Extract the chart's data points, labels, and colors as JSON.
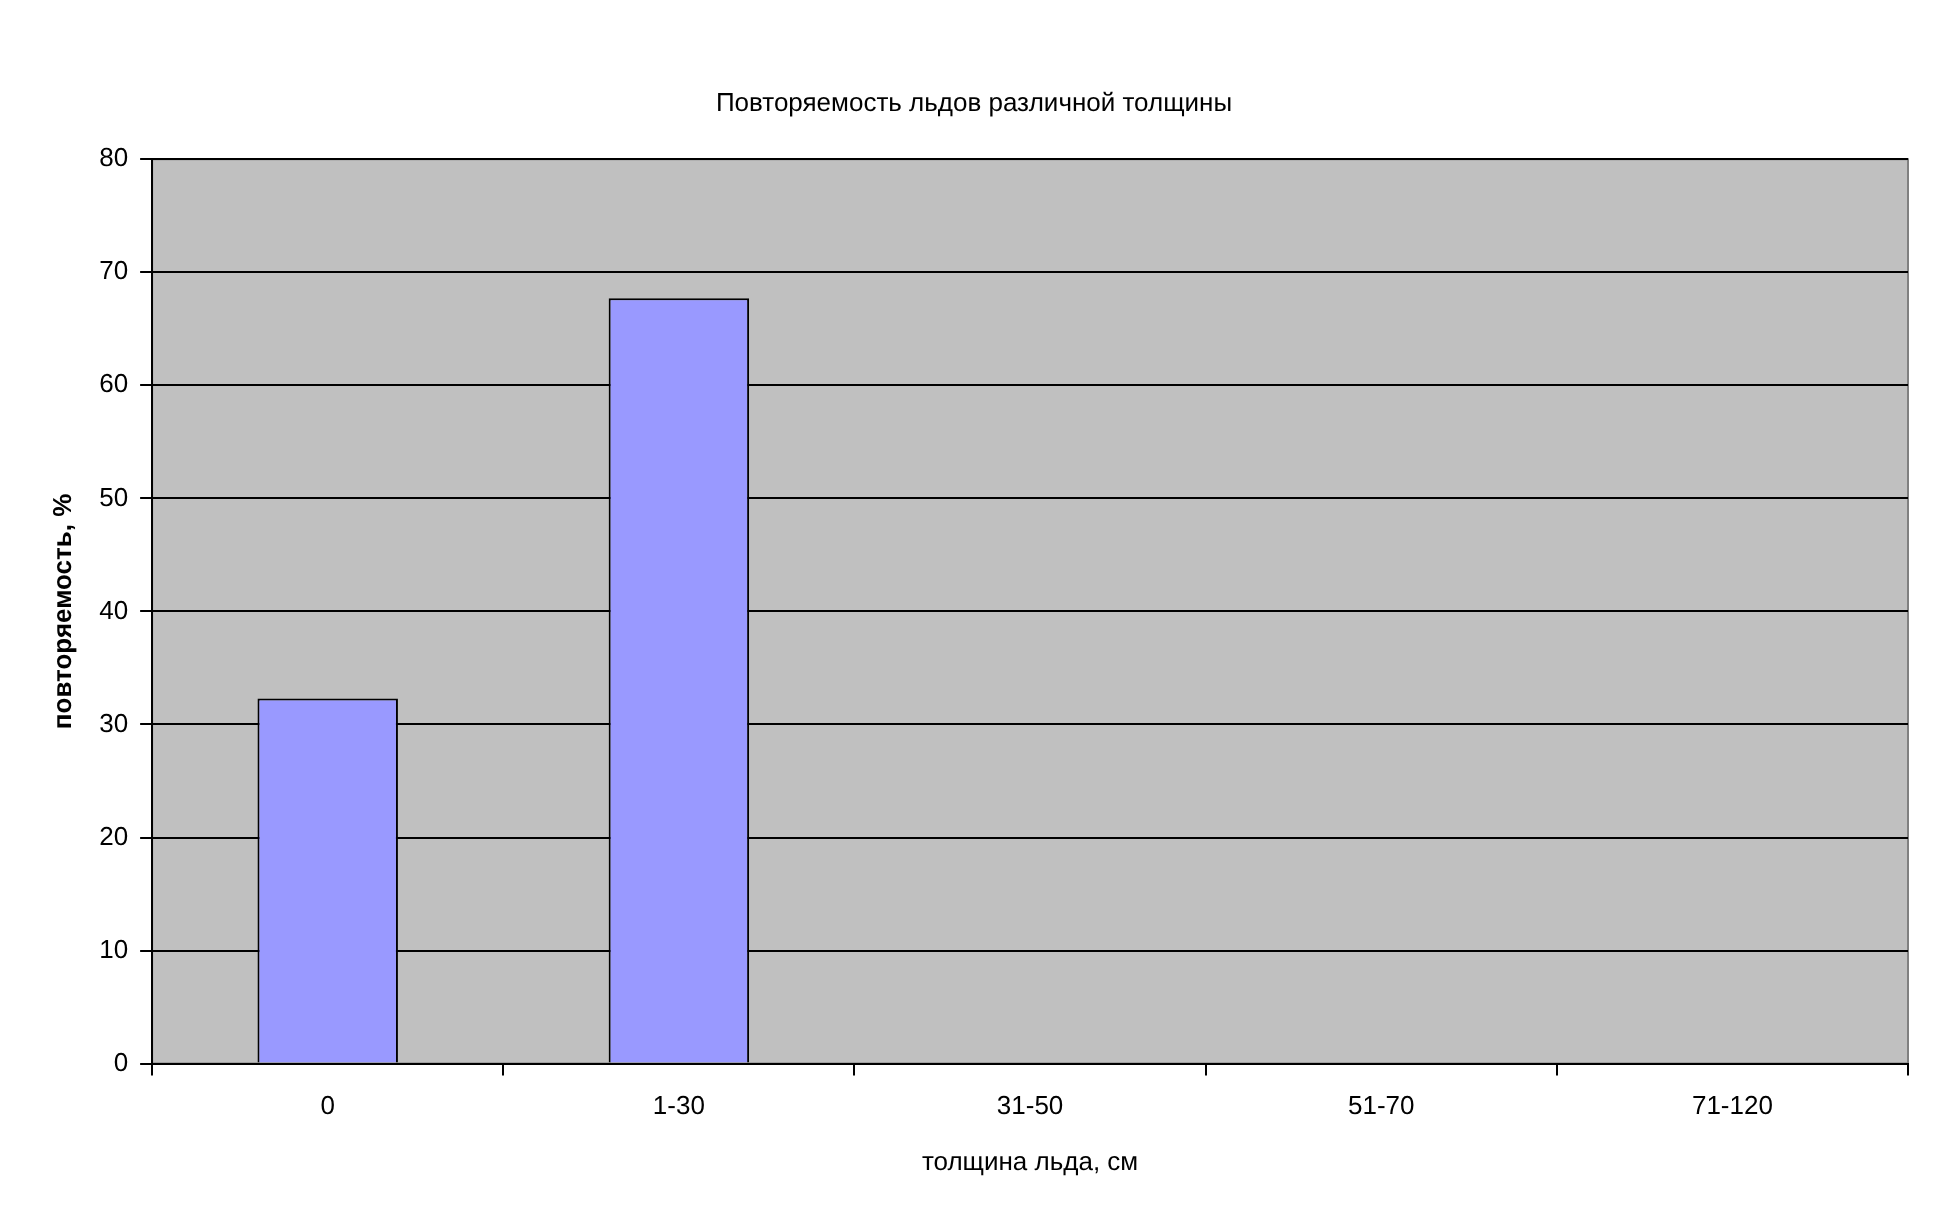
{
  "chart_data": {
    "type": "bar",
    "title": "Повторяемость льдов различной толщины",
    "xlabel": "толщина льда, см",
    "ylabel": "повторяемость, %",
    "categories": [
      "0",
      "1-30",
      "31-50",
      "51-70",
      "71-120"
    ],
    "values": [
      32.3,
      67.7,
      0,
      0,
      0
    ],
    "color": "#9999ff",
    "ylim": [
      0,
      80
    ],
    "yticks": [
      0,
      10,
      20,
      30,
      40,
      50,
      60,
      70,
      80
    ],
    "grid": "y"
  }
}
